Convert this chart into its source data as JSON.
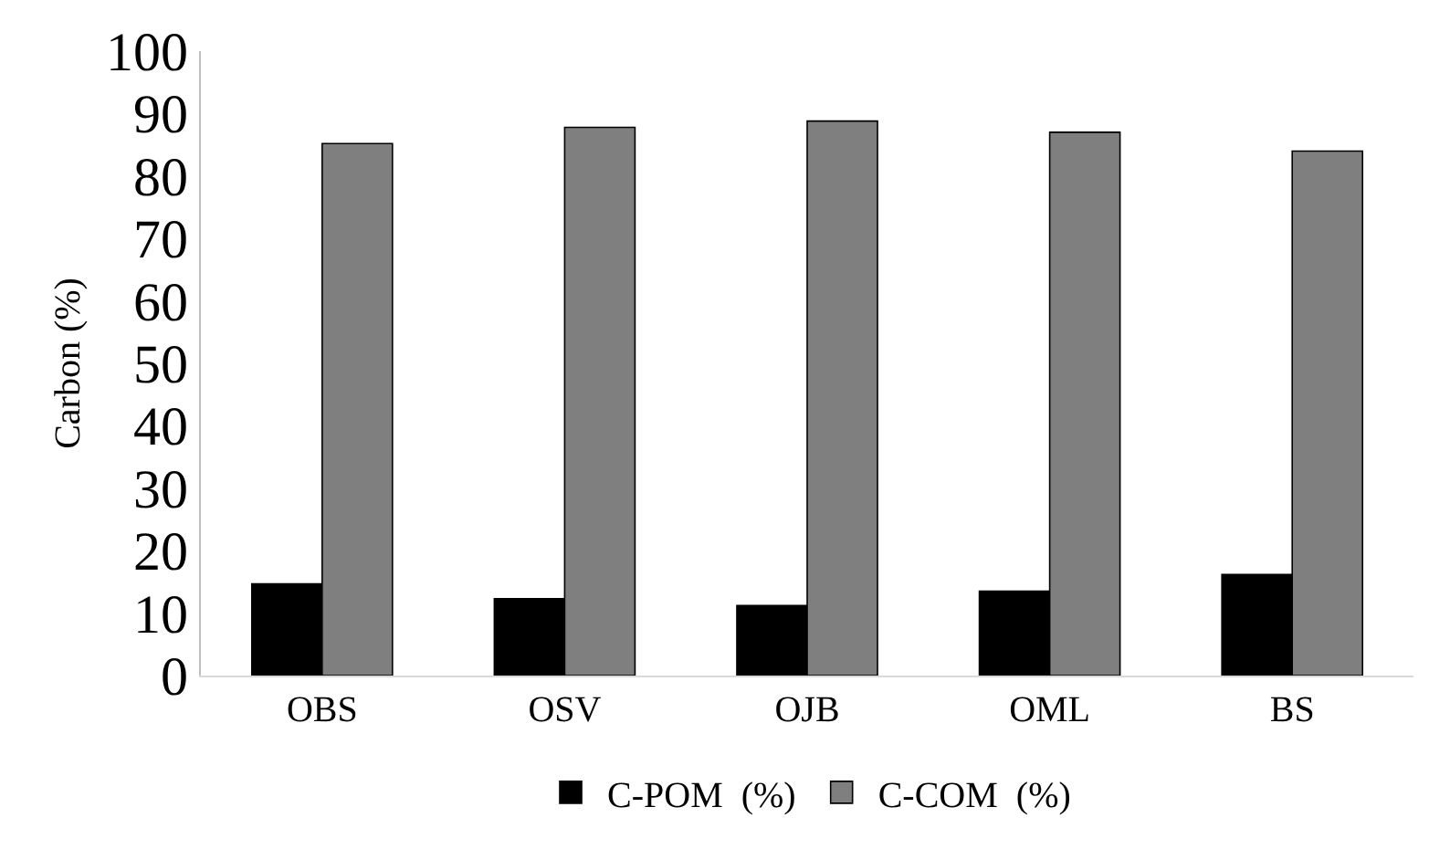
{
  "chart_data": {
    "type": "bar",
    "ylabel": "Carbon (%)",
    "categories": [
      "OBS",
      "OSV",
      "OJB",
      "OML",
      "BS"
    ],
    "series": [
      {
        "name": "C-POM  (%)",
        "color": "#000000",
        "values": [
          14.7,
          12.3,
          11.2,
          13.5,
          16.2
        ]
      },
      {
        "name": "C-COM  (%)",
        "color": "#7f7f7f",
        "values": [
          85.2,
          87.8,
          88.8,
          87.0,
          84.0
        ]
      }
    ],
    "ylim": [
      0,
      100
    ],
    "yticks": [
      0,
      10,
      20,
      30,
      40,
      50,
      60,
      70,
      80,
      90,
      100
    ],
    "grid": false,
    "legend": "bottom"
  }
}
